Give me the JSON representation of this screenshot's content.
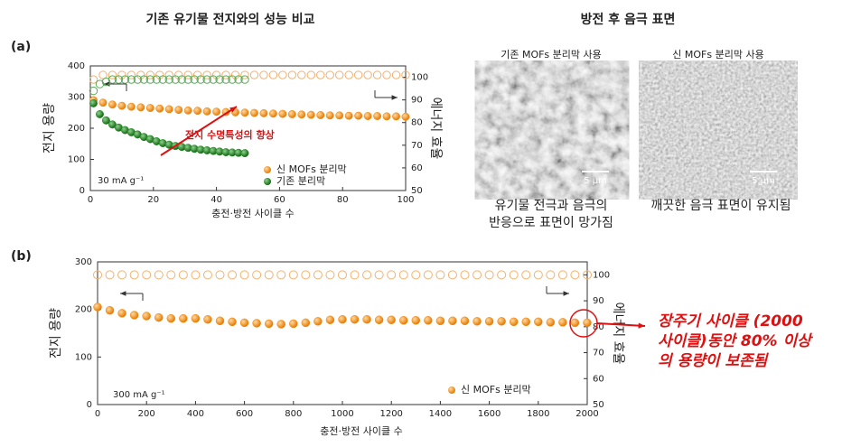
{
  "panel_labels": [
    "(a)",
    "(b)"
  ],
  "chart_data": [
    {
      "type": "scatter",
      "title": "기존 유기물 전지와의 성능 비교",
      "x_label": "충전·방전 사이클 수",
      "y_label": "전지 용량",
      "y2_label": "에너지 효율",
      "condition": "30 mA g⁻¹",
      "annotation": "전지 수명특성의 향상",
      "xlim": [
        0,
        100
      ],
      "xticks": [
        0,
        20,
        40,
        60,
        80,
        100
      ],
      "ylim": [
        0,
        400
      ],
      "yticks": [
        0,
        100,
        200,
        300,
        400
      ],
      "y2lim": [
        50,
        105
      ],
      "y2ticks": [
        50,
        60,
        70,
        80,
        90,
        100
      ],
      "series": [
        {
          "name": "신 MOFs 분리막",
          "color": "#f08a10",
          "efficiency_color": "#f2b070",
          "x": [
            1,
            4,
            7,
            10,
            13,
            16,
            19,
            22,
            25,
            28,
            31,
            34,
            37,
            40,
            43,
            46,
            49,
            52,
            55,
            58,
            61,
            64,
            67,
            70,
            73,
            76,
            79,
            82,
            85,
            88,
            91,
            94,
            97,
            100
          ],
          "values": [
            290,
            282,
            276,
            272,
            269,
            267,
            265,
            263,
            261,
            259,
            257,
            256,
            254,
            253,
            252,
            251,
            250,
            249,
            248,
            247,
            246,
            245,
            244,
            243,
            242,
            241,
            241,
            240,
            240,
            239,
            239,
            238,
            238,
            237
          ],
          "efficiency": [
            99,
            101,
            101,
            101,
            101,
            101,
            101,
            101,
            101,
            101,
            101,
            101,
            101,
            101,
            101,
            101,
            101,
            101,
            101,
            101,
            101,
            101,
            101,
            101,
            101,
            101,
            101,
            101,
            101,
            101,
            101,
            101,
            101,
            101
          ]
        },
        {
          "name": "기존 분리막",
          "color": "#1e8a1e",
          "efficiency_color": "#5aaa5a",
          "x": [
            1,
            3,
            5,
            7,
            9,
            11,
            13,
            15,
            17,
            19,
            21,
            23,
            25,
            27,
            29,
            31,
            33,
            35,
            37,
            39,
            41,
            43,
            45,
            47,
            49
          ],
          "values": [
            280,
            245,
            225,
            212,
            202,
            194,
            187,
            180,
            172,
            165,
            158,
            152,
            147,
            143,
            140,
            137,
            134,
            131,
            129,
            127,
            125,
            123,
            122,
            121,
            120
          ],
          "efficiency": [
            94,
            97,
            98,
            99,
            99,
            99,
            99,
            99,
            99,
            99,
            99,
            99,
            99,
            99,
            99,
            99,
            99,
            99,
            99,
            99,
            99,
            99,
            99,
            99,
            99
          ]
        }
      ]
    },
    {
      "type": "scatter",
      "x_label": "충전·방전 사이클 수",
      "y_label": "전지 용량",
      "y2_label": "에너지 효율",
      "condition": "300 mA g⁻¹",
      "annotation": [
        "장주기 사이클 (2000",
        "사이클)동안 80% 이상",
        "의 용량이 보존됨"
      ],
      "xlim": [
        0,
        2000
      ],
      "xticks": [
        0,
        200,
        400,
        600,
        800,
        1000,
        1200,
        1400,
        1600,
        1800,
        2000
      ],
      "ylim": [
        0,
        300
      ],
      "yticks": [
        0,
        100,
        200,
        300
      ],
      "y2lim": [
        50,
        105
      ],
      "y2ticks": [
        50,
        60,
        70,
        80,
        90,
        100
      ],
      "series": [
        {
          "name": "신 MOFs 분리막",
          "color": "#f08a10",
          "efficiency_color": "#f2b070",
          "x": [
            0,
            50,
            100,
            150,
            200,
            250,
            300,
            350,
            400,
            450,
            500,
            550,
            600,
            650,
            700,
            750,
            800,
            850,
            900,
            950,
            1000,
            1050,
            1100,
            1150,
            1200,
            1250,
            1300,
            1350,
            1400,
            1450,
            1500,
            1550,
            1600,
            1650,
            1700,
            1750,
            1800,
            1850,
            1900,
            1950,
            2000
          ],
          "values": [
            205,
            198,
            192,
            188,
            186,
            183,
            181,
            181,
            181,
            179,
            176,
            174,
            172,
            171,
            170,
            169,
            170,
            172,
            175,
            178,
            179,
            179,
            179,
            178,
            178,
            177,
            177,
            177,
            176,
            176,
            176,
            175,
            175,
            175,
            174,
            174,
            174,
            173,
            173,
            172,
            172
          ],
          "efficiency": [
            100,
            100,
            100,
            100,
            100,
            100,
            100,
            100,
            100,
            100,
            100,
            100,
            100,
            100,
            100,
            100,
            100,
            100,
            100,
            100,
            100,
            100,
            100,
            100,
            100,
            100,
            100,
            100,
            100,
            100,
            100,
            100,
            100,
            100,
            100,
            100,
            100,
            100,
            100,
            100,
            100
          ]
        }
      ]
    }
  ],
  "surface": {
    "title": "방전 후 음극 표면",
    "images": [
      {
        "label": "기존 MOFs 분리막 사용",
        "scale_bar": "5 μm",
        "caption": [
          "유기물 전극과 음극의",
          "반응으로 표면이 망가짐"
        ]
      },
      {
        "label": "신 MOFs 분리막 사용",
        "scale_bar": "5 μm",
        "caption": [
          "깨끗한 음극 표면이 유지됨"
        ]
      }
    ]
  }
}
